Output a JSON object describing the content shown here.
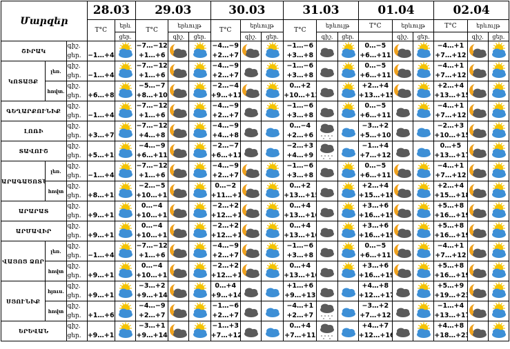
{
  "header": {
    "title": "Մարզեր",
    "temp_label": "T°C",
    "phenomenon_label": "երևույթ",
    "phenomenon_short": "երև",
    "night_label": "գիշ.",
    "day_label": "ցեր.",
    "dates": [
      "28.03",
      "29.03",
      "30.03",
      "31.03",
      "01.04",
      "02.04"
    ]
  },
  "colors": {
    "sun": "#f5c300",
    "blue_cloud": "#3d8fd6",
    "dark_cloud": "#5a5a5a",
    "moon": "#f0a21e"
  },
  "regions": [
    {
      "name": "ՇԻՐԱԿ",
      "rows": [
        {
          "sub": "",
          "t28": "−1…+4",
          "days": [
            [
              "−7…−12",
              "+1…+6",
              "moon-cloud",
              "sun-cloud"
            ],
            [
              "−4…−9",
              "+2…+7",
              "moon-cloud",
              "sun-cloud"
            ],
            [
              "−1…−6",
              "+3…+8",
              "dark-clouds",
              "sun-cloud"
            ],
            [
              "0…−5",
              "+6…+11",
              "moon-cloud",
              "sun-cloud"
            ],
            [
              "−4…+1",
              "+7…+12",
              "moon-cloud",
              "sun-cloud"
            ]
          ]
        }
      ]
    },
    {
      "name": "ԿՈՏԱՅՔ",
      "rows": [
        {
          "sub": "լեռ.",
          "t28": "−1…+4",
          "days": [
            [
              "−7…−12",
              "+1…+6",
              "moon-cloud",
              "sun-cloud"
            ],
            [
              "−4…−9",
              "+2…+7",
              "dark-clouds",
              "sun-cloud"
            ],
            [
              "−1…−6",
              "+3…+8",
              "dark-clouds",
              "sun-cloud"
            ],
            [
              "0…−5",
              "+6…+11",
              "moon-cloud",
              "sun-cloud"
            ],
            [
              "−4…+1",
              "+7…+12",
              "moon-cloud",
              "sun-cloud"
            ]
          ]
        },
        {
          "sub": "հովտ.",
          "t28": "+6…+8",
          "days": [
            [
              "−5…−7",
              "+8…+10",
              "moon-cloud",
              "sun-cloud"
            ],
            [
              "−2…−4",
              "+9…+11",
              "moon-cloud",
              "sun-cloud"
            ],
            [
              "0…+2",
              "+10…+13",
              "dark-clouds",
              "sun-cloud"
            ],
            [
              "+2…+4",
              "+13…+15",
              "moon-cloud",
              "sun-cloud"
            ],
            [
              "+2…+4",
              "+13…+15",
              "moon-cloud",
              "sun-cloud"
            ]
          ]
        }
      ]
    },
    {
      "name": "ԳԵՂԱՐՔՈՒՆԻՔ",
      "rows": [
        {
          "sub": "",
          "t28": "−1…+4",
          "days": [
            [
              "−7…−12",
              "+1…+6",
              "moon-cloud",
              "sun-cloud"
            ],
            [
              "−4…−9",
              "+2…+7",
              "dark-clouds",
              "sun-cloud"
            ],
            [
              "−1…−6",
              "+3…+8",
              "dark-clouds",
              "sun-cloud"
            ],
            [
              "0…−5",
              "+6…+11",
              "dark-clouds",
              "sun-cloud"
            ],
            [
              "−4…+1",
              "+7…+12",
              "moon-cloud",
              "sun-cloud"
            ]
          ]
        }
      ]
    },
    {
      "name": "ԼՈՌԻ",
      "rows": [
        {
          "sub": "",
          "t28": "+3…+7",
          "days": [
            [
              "−7…−12",
              "+4…+8",
              "moon-cloud",
              "sun-cloud"
            ],
            [
              "−4…−9",
              "+4…+8",
              "dark-clouds",
              "blue-clouds"
            ],
            [
              "0…−4",
              "+2…+6",
              "snow-cloud",
              "blue-clouds"
            ],
            [
              "−3…+2",
              "+5…+10",
              "dark-clouds",
              "blue-clouds"
            ],
            [
              "−2…+3",
              "+10…+15",
              "moon-cloud",
              "sun-cloud"
            ]
          ]
        }
      ]
    },
    {
      "name": "ՏԱՎՈՒՇ",
      "rows": [
        {
          "sub": "",
          "t28": "+5…+10",
          "days": [
            [
              "−4…−9",
              "+6…+11",
              "moon-cloud",
              "sun-cloud"
            ],
            [
              "−2…−7",
              "+6…+11",
              "dark-clouds",
              "blue-clouds"
            ],
            [
              "−2…+3",
              "+4…+9",
              "snow-cloud",
              "blue-clouds"
            ],
            [
              "−1…+4",
              "+7…+12",
              "dark-clouds",
              "blue-clouds"
            ],
            [
              "0…+5",
              "+13…+17",
              "moon-cloud",
              "sun-cloud"
            ]
          ]
        }
      ]
    },
    {
      "name": "ԱՐԱԳԱԾՈՏՆ",
      "rows": [
        {
          "sub": "լեռ.",
          "t28": "−1…+4",
          "days": [
            [
              "−7…−12",
              "+1…+6",
              "moon-cloud",
              "sun-cloud"
            ],
            [
              "−4…−9",
              "+2…+7",
              "moon-cloud",
              "sun-cloud"
            ],
            [
              "−1…−6",
              "+3…+8",
              "dark-clouds",
              "sun-cloud"
            ],
            [
              "0…−5",
              "+6…+11",
              "moon-cloud",
              "sun-cloud"
            ],
            [
              "−4…+1",
              "+7…+12",
              "moon-cloud",
              "sun-cloud"
            ]
          ]
        },
        {
          "sub": "հովտ",
          "t28": "+8…+10",
          "days": [
            [
              "−2…−5",
              "+10…+12",
              "moon-cloud",
              "sun-cloud"
            ],
            [
              "0…−2",
              "+11…+13",
              "moon-cloud",
              "sun-cloud"
            ],
            [
              "0…+2",
              "+13…+15",
              "dark-clouds",
              "sun-cloud"
            ],
            [
              "+2…+4",
              "+15…+18",
              "moon-cloud",
              "sun-cloud"
            ],
            [
              "+2…+4",
              "+15…+18",
              "moon-cloud",
              "sun-cloud"
            ]
          ]
        }
      ]
    },
    {
      "name": "ԱՐԱՐԱՏ",
      "rows": [
        {
          "sub": "",
          "t28": "+9…+12",
          "days": [
            [
              "0…−4",
              "+10…+13",
              "moon-cloud",
              "sun-cloud"
            ],
            [
              "−2…+2",
              "+12…+15",
              "moon-cloud",
              "sun-cloud"
            ],
            [
              "0…+4",
              "+13…+16",
              "dark-clouds",
              "sun-cloud"
            ],
            [
              "+3…+6",
              "+16…+19",
              "moon-cloud",
              "sun-cloud"
            ],
            [
              "+5…+8",
              "+16…+19",
              "moon-cloud",
              "sun-cloud"
            ]
          ]
        }
      ]
    },
    {
      "name": "ԱՐՄԱՎԻՐ",
      "rows": [
        {
          "sub": "",
          "t28": "+9…+12",
          "days": [
            [
              "0…−4",
              "+10…+13",
              "moon-cloud",
              "sun-cloud"
            ],
            [
              "−2…+2",
              "+12…+15",
              "moon-cloud",
              "sun-cloud"
            ],
            [
              "0…+4",
              "+13…+16",
              "dark-clouds",
              "sun-cloud"
            ],
            [
              "+3…+6",
              "+16…+19",
              "moon-cloud",
              "sun-cloud"
            ],
            [
              "+5…+8",
              "+16…+19",
              "moon-cloud",
              "sun-cloud"
            ]
          ]
        }
      ]
    },
    {
      "name": "ՎԱՅՈՑ ՁՈՐ",
      "rows": [
        {
          "sub": "լեռ.",
          "t28": "−1…+4",
          "days": [
            [
              "−7…−12",
              "+1…+6",
              "moon-cloud",
              "sun-cloud"
            ],
            [
              "−4…−9",
              "+2…+7",
              "moon-cloud",
              "sun-cloud"
            ],
            [
              "−1…−6",
              "+3…+8",
              "dark-clouds",
              "sun-cloud"
            ],
            [
              "0…−5",
              "+6…+11",
              "moon-cloud",
              "sun-cloud"
            ],
            [
              "−4…+1",
              "+7…+12",
              "moon-cloud",
              "sun-cloud"
            ]
          ]
        },
        {
          "sub": "հովտ",
          "t28": "+9…+12",
          "days": [
            [
              "0…−4",
              "+10…+13",
              "moon-cloud",
              "sun-cloud"
            ],
            [
              "−2…+2",
              "+12…+15",
              "moon-cloud",
              "sun-cloud"
            ],
            [
              "0…+4",
              "+13…+16",
              "dark-clouds",
              "sun-cloud"
            ],
            [
              "+3…+6",
              "+16…+19",
              "moon-cloud",
              "sun-cloud"
            ],
            [
              "+5…+8",
              "+16…+19",
              "moon-cloud",
              "sun-cloud"
            ]
          ]
        }
      ]
    },
    {
      "name": "ՍՅՈՒՆԻՔ",
      "rows": [
        {
          "sub": "հյուս.",
          "t28": "+9…+13",
          "days": [
            [
              "−3…+2",
              "+9…+14",
              "moon-cloud",
              "sun-cloud"
            ],
            [
              "0…+4",
              "+9…+14",
              "dark-clouds",
              "blue-clouds"
            ],
            [
              "+1…+6",
              "+9…+13",
              "dark-clouds",
              "blue-clouds"
            ],
            [
              "+4…+8",
              "+12…+17",
              "dark-clouds",
              "sun-cloud"
            ],
            [
              "+5…+9",
              "+19…+23",
              "moon-cloud",
              "sun-cloud"
            ]
          ]
        },
        {
          "sub": "հովտ",
          "t28": "+1…+6",
          "days": [
            [
              "−4…−9",
              "+2…+7",
              "moon-cloud",
              "sun-cloud"
            ],
            [
              "−1…−6",
              "+2…+7",
              "dark-clouds",
              "blue-clouds"
            ],
            [
              "−4…+1",
              "+2…+7",
              "snow-cloud",
              "blue-clouds"
            ],
            [
              "−3…+2",
              "+7…+12",
              "dark-clouds",
              "sun-cloud"
            ],
            [
              "−1…+4",
              "+13…+17",
              "moon-cloud",
              "sun-cloud"
            ]
          ]
        }
      ]
    },
    {
      "name": "ԵՐԵՎԱՆ",
      "rows": [
        {
          "sub": "",
          "t28": "+9…+13",
          "days": [
            [
              "−3…+1",
              "+9…+14",
              "moon-cloud",
              "sun-cloud"
            ],
            [
              "−1…+3",
              "+7…+12",
              "dark-clouds",
              "blue-clouds"
            ],
            [
              "0…+4",
              "+7…+11",
              "snow-cloud",
              "blue-clouds"
            ],
            [
              "+4…+7",
              "+12…+16",
              "dark-clouds",
              "sun-cloud"
            ],
            [
              "+4…+8",
              "+18…+23",
              "moon-cloud",
              "sun-cloud"
            ]
          ]
        }
      ]
    }
  ]
}
